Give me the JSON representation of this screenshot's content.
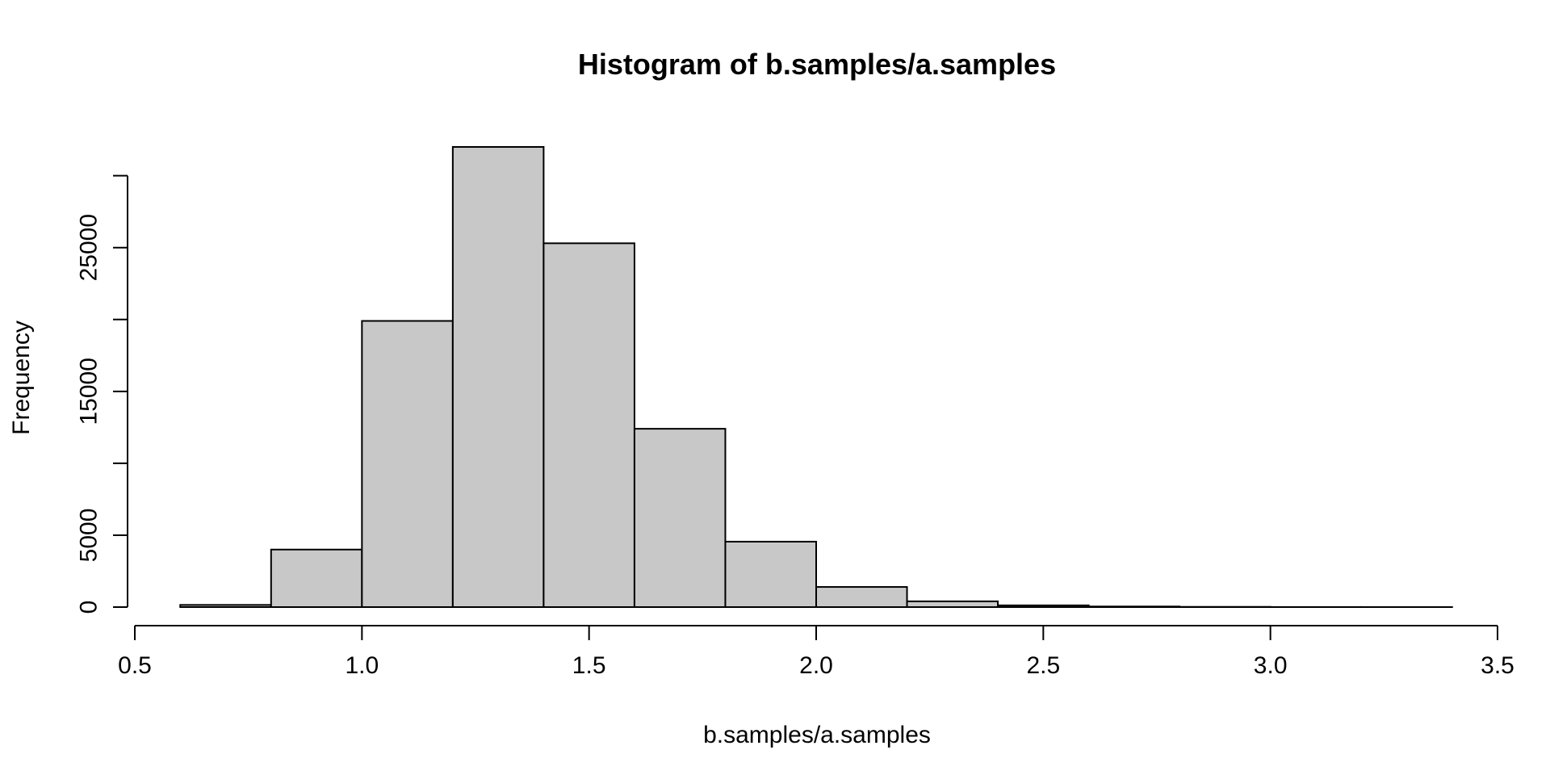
{
  "chart_data": {
    "type": "bar",
    "title": "Histogram of b.samples/a.samples",
    "xlabel": "b.samples/a.samples",
    "ylabel": "Frequency",
    "bar_color": "#c8c8c8",
    "bar_border_color": "#000000",
    "xlim": [
      0.5,
      3.5
    ],
    "ylim": [
      0,
      32000
    ],
    "x_ticks": [
      0.5,
      1.0,
      1.5,
      2.0,
      2.5,
      3.0,
      3.5
    ],
    "x_tick_labels": [
      "0.5",
      "1.0",
      "1.5",
      "2.0",
      "2.5",
      "3.0",
      "3.5"
    ],
    "y_ticks": [
      0,
      5000,
      10000,
      15000,
      20000,
      25000,
      30000
    ],
    "y_tick_labels": [
      "0",
      "5000",
      "",
      "15000",
      "",
      "25000",
      ""
    ],
    "bins": [
      {
        "start": 0.6,
        "end": 0.8,
        "count": 150
      },
      {
        "start": 0.8,
        "end": 1.0,
        "count": 4000
      },
      {
        "start": 1.0,
        "end": 1.2,
        "count": 19900
      },
      {
        "start": 1.2,
        "end": 1.4,
        "count": 32000
      },
      {
        "start": 1.4,
        "end": 1.6,
        "count": 25300
      },
      {
        "start": 1.6,
        "end": 1.8,
        "count": 12400
      },
      {
        "start": 1.8,
        "end": 2.0,
        "count": 4550
      },
      {
        "start": 2.0,
        "end": 2.2,
        "count": 1400
      },
      {
        "start": 2.2,
        "end": 2.4,
        "count": 400
      },
      {
        "start": 2.4,
        "end": 2.6,
        "count": 120
      },
      {
        "start": 2.6,
        "end": 2.8,
        "count": 40
      },
      {
        "start": 2.8,
        "end": 3.0,
        "count": 15
      },
      {
        "start": 3.0,
        "end": 3.2,
        "count": 5
      },
      {
        "start": 3.2,
        "end": 3.4,
        "count": 2
      }
    ],
    "grid": false,
    "legend": "none"
  }
}
